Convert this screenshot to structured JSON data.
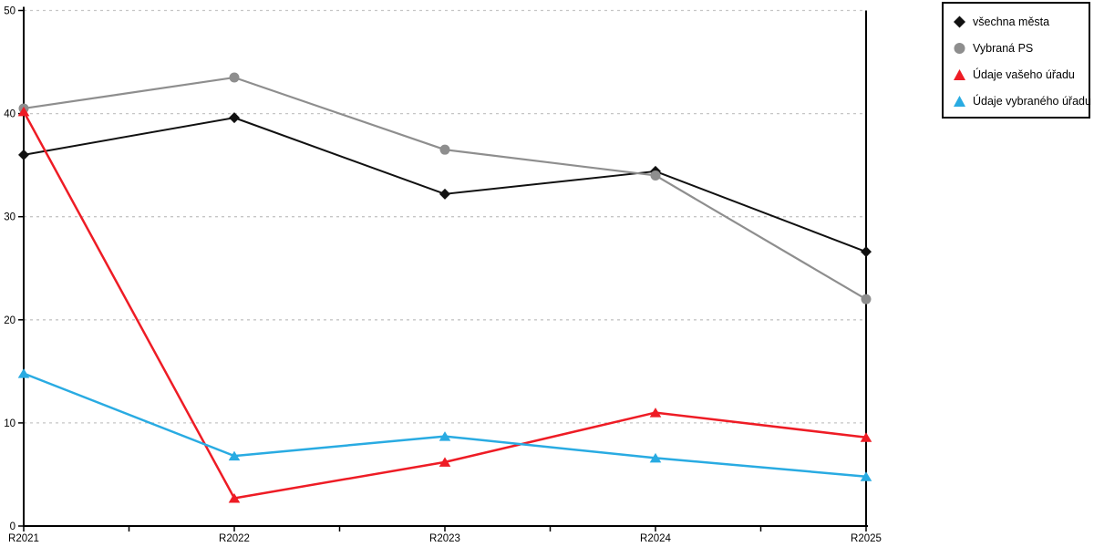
{
  "chart_data": {
    "type": "line",
    "title": "",
    "xlabel": "",
    "ylabel": "",
    "categories": [
      "R2021",
      "R2022",
      "R2023",
      "R2024",
      "R2025"
    ],
    "series": [
      {
        "name": "všechna města",
        "marker": "diamond",
        "color": "#111111",
        "line_width": 2,
        "values": [
          36.0,
          39.6,
          32.2,
          34.4,
          26.6
        ]
      },
      {
        "name": "Vybraná PS",
        "marker": "circle",
        "color": "#8e8e8e",
        "line_width": 2.2,
        "values": [
          40.5,
          43.5,
          36.5,
          34.0,
          22.0
        ]
      },
      {
        "name": "Údaje vašeho úřadu",
        "marker": "triangle",
        "color": "#ee1c25",
        "line_width": 2.5,
        "values": [
          40.2,
          2.7,
          6.2,
          11.0,
          8.6
        ]
      },
      {
        "name": "Údaje vybraného úřadu",
        "marker": "triangle",
        "color": "#29abe2",
        "line_width": 2.5,
        "values": [
          14.8,
          6.8,
          8.7,
          6.6,
          4.8
        ]
      }
    ],
    "ylim": [
      0,
      50
    ],
    "ytick_step": 10,
    "ytick_labels": [
      "0",
      "10",
      "20",
      "30",
      "40",
      "50"
    ],
    "grid": true,
    "gridline_style": "dotted",
    "legend_position": "top-right",
    "colors": {
      "axis": "#000000",
      "grid": "#c6c6c6",
      "background": "#ffffff"
    }
  }
}
